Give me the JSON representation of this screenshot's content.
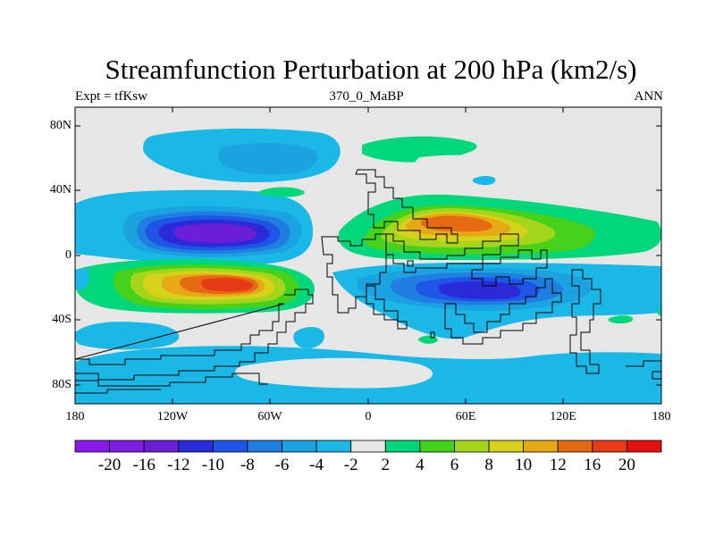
{
  "map": {
    "title": "Streamfunction Perturbation at 200 hPa (km2/s)",
    "left_label": "Expt = tfKsw",
    "center_label": "370_0_MaBP",
    "right_label": "ANN",
    "lat_ticks": [
      "80N",
      "40N",
      "0",
      "40S",
      "80S"
    ],
    "lon_ticks": [
      "180",
      "120W",
      "60W",
      "0",
      "60E",
      "120E",
      "180"
    ],
    "background_color": "#e6e6e6"
  },
  "colorbar": {
    "labels": [
      "-20",
      "-16",
      "-12",
      "-10",
      "-8",
      "-6",
      "-4",
      "-2",
      "2",
      "4",
      "6",
      "8",
      "10",
      "12",
      "16",
      "20"
    ],
    "colors": [
      "#8b1ae8",
      "#7c1ee0",
      "#6a1fd6",
      "#2a2ad8",
      "#1f55e6",
      "#1f7fe0",
      "#1aa3e0",
      "#1ab8e6",
      "#e6e6e6",
      "#00d77a",
      "#46d21a",
      "#a3d61a",
      "#d6d21a",
      "#e6a814",
      "#e66a14",
      "#e63a14",
      "#e60f0f"
    ]
  }
}
